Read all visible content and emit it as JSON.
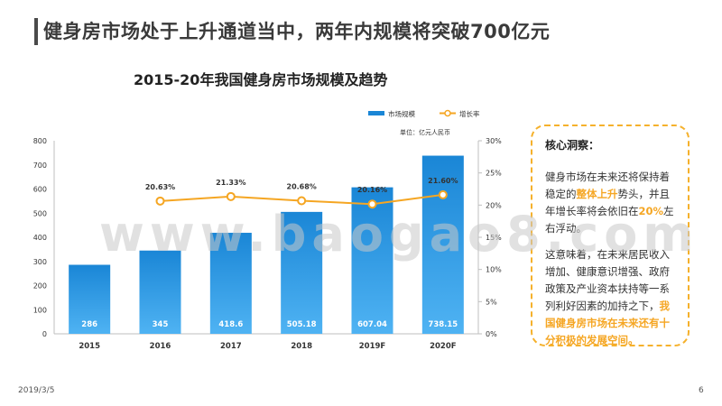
{
  "page_title": "健身房市场处于上升通道当中，两年内规模将突破700亿元",
  "watermark": "www.baogao8.com",
  "insight": {
    "heading": "核心洞察：",
    "p1": [
      "健身市场在未来还将保持着稳定的",
      "整体上升",
      "势头，并且年增长率将会依旧在",
      "20%",
      "左右浮动。"
    ],
    "p2": [
      "这意味着，在未来居民收入增加、健康意识增强、政府政策及产业资本扶持等一系列利好因素的加持之下，",
      "我国健身房市场在未来还有十分积极的发展空间。"
    ]
  },
  "footer": {
    "date": "2019/3/5",
    "page": "6"
  },
  "chart_data": {
    "type": "bar",
    "title": "2015-20年我国健身房市场规模及趋势",
    "unit_note": "单位：亿元人民币",
    "categories": [
      "2015",
      "2016",
      "2017",
      "2018",
      "2019F",
      "2020F"
    ],
    "series": [
      {
        "name": "市场规模",
        "type": "bar",
        "axis": "left",
        "values": [
          286,
          345,
          418.6,
          505.18,
          607.04,
          738.15
        ],
        "labels": [
          "286",
          "345",
          "418.6",
          "505.18",
          "607.04",
          "738.15"
        ]
      },
      {
        "name": "增长率",
        "type": "line",
        "axis": "right",
        "x": [
          "2016",
          "2017",
          "2018",
          "2019F",
          "2020F"
        ],
        "values": [
          20.63,
          21.33,
          20.68,
          20.16,
          21.6
        ],
        "labels": [
          "20.63%",
          "21.33%",
          "20.68%",
          "20.16%",
          "21.60%"
        ]
      }
    ],
    "y_left": {
      "min": 0,
      "max": 800,
      "ticks": [
        "0",
        "100",
        "200",
        "300",
        "400",
        "500",
        "600",
        "700",
        "800"
      ]
    },
    "y_right": {
      "min": 0,
      "max": 30,
      "ticks": [
        "0%",
        "5%",
        "10%",
        "15%",
        "20%",
        "25%",
        "30%"
      ]
    },
    "legend_position": "top-right",
    "colors": {
      "bar_top": "#1a86d6",
      "bar_bottom": "#4fb3f3",
      "line": "#f5a623",
      "point_fill": "#ffffff"
    }
  }
}
